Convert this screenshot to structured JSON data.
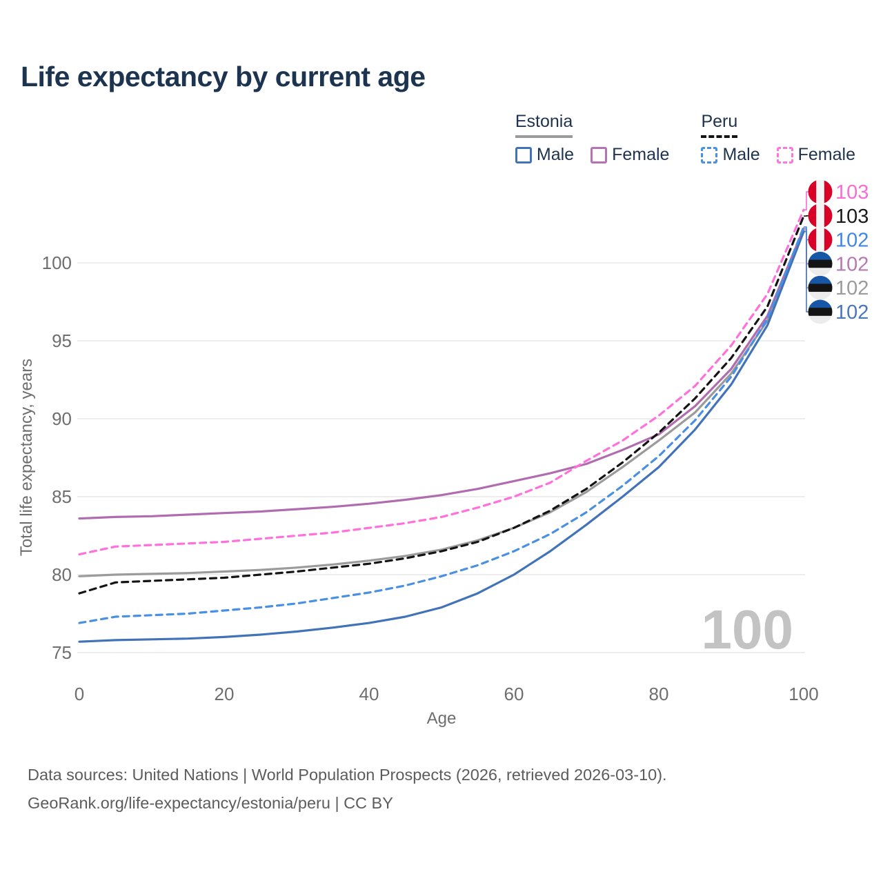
{
  "title": "Life expectancy by current age",
  "legend": {
    "groups": [
      {
        "label": "Estonia",
        "line": {
          "color": "#9b9b9b",
          "style": "solid"
        },
        "items": [
          {
            "label": "Male",
            "color": "#4273b8",
            "style": "solid"
          },
          {
            "label": "Female",
            "color": "#b673b3",
            "style": "solid"
          }
        ]
      },
      {
        "label": "Peru",
        "line": {
          "color": "#141414",
          "style": "dashed"
        },
        "items": [
          {
            "label": "Male",
            "color": "#4a90e2",
            "style": "dashed"
          },
          {
            "label": "Female",
            "color": "#ff77dd",
            "style": "dashed"
          }
        ]
      }
    ]
  },
  "watermark": "100",
  "footer": {
    "line1": "Data sources: United Nations | World Population Prospects (2026, retrieved 2026-03-10).",
    "line2": "GeoRank.org/life-expectancy/estonia/peru | CC BY"
  },
  "chart_data": {
    "type": "line",
    "title": "Life expectancy by current age",
    "xlabel": "Age",
    "ylabel": "Total life expectancy, years",
    "xlim": [
      0,
      100
    ],
    "ylim": [
      74.5,
      103.5
    ],
    "x_ticks": [
      0,
      20,
      40,
      60,
      80,
      100
    ],
    "y_ticks": [
      75,
      80,
      85,
      90,
      95,
      100
    ],
    "grid": "horizontal-only",
    "legend_position": "top-right",
    "x": [
      0,
      5,
      10,
      15,
      20,
      25,
      30,
      35,
      40,
      45,
      50,
      55,
      60,
      65,
      70,
      75,
      80,
      85,
      90,
      95,
      100
    ],
    "series": [
      {
        "name": "Estonia",
        "country": "Estonia",
        "sex": "all",
        "color": "#9b9b9b",
        "dashed": false,
        "values": [
          79.9,
          80.0,
          80.05,
          80.1,
          80.2,
          80.3,
          80.45,
          80.65,
          80.9,
          81.2,
          81.6,
          82.2,
          83.0,
          84.0,
          85.3,
          86.9,
          88.6,
          90.4,
          92.9,
          96.3,
          102.1
        ],
        "end_label": "102",
        "end_label_color": "#9b9b9b",
        "flag": "estonia",
        "end_row": 4
      },
      {
        "name": "Estonia Female",
        "country": "Estonia",
        "sex": "female",
        "color": "#b06cae",
        "dashed": false,
        "values": [
          83.6,
          83.7,
          83.75,
          83.85,
          83.95,
          84.05,
          84.2,
          84.35,
          84.55,
          84.8,
          85.1,
          85.5,
          86.0,
          86.5,
          87.1,
          88.0,
          89.0,
          90.8,
          93.2,
          96.6,
          102.2
        ],
        "end_label": "102",
        "end_label_color": "#b57ab2",
        "flag": "estonia",
        "end_row": 3
      },
      {
        "name": "Estonia Male",
        "country": "Estonia",
        "sex": "male",
        "color": "#4273b8",
        "dashed": false,
        "values": [
          75.7,
          75.8,
          75.85,
          75.9,
          76.0,
          76.15,
          76.35,
          76.6,
          76.9,
          77.3,
          77.9,
          78.8,
          80.0,
          81.5,
          83.2,
          85.0,
          86.9,
          89.3,
          92.2,
          96.0,
          102.0
        ],
        "end_label": "102",
        "end_label_color": "#4a77bb",
        "flag": "estonia",
        "end_row": 5
      },
      {
        "name": "Peru",
        "country": "Peru",
        "sex": "all",
        "color": "#141414",
        "dashed": true,
        "values": [
          78.8,
          79.5,
          79.6,
          79.7,
          79.8,
          80.0,
          80.2,
          80.45,
          80.7,
          81.05,
          81.5,
          82.1,
          83.0,
          84.1,
          85.5,
          87.2,
          89.1,
          91.3,
          93.9,
          97.2,
          103.0
        ],
        "end_label": "103",
        "end_label_color": "#1a1a1a",
        "flag": "peru",
        "end_row": 1
      },
      {
        "name": "Peru Male",
        "country": "Peru",
        "sex": "male",
        "color": "#4a90e2",
        "dashed": true,
        "values": [
          76.9,
          77.3,
          77.4,
          77.5,
          77.7,
          77.9,
          78.15,
          78.5,
          78.85,
          79.3,
          79.9,
          80.6,
          81.5,
          82.6,
          84.0,
          85.7,
          87.6,
          89.9,
          92.7,
          96.4,
          102.3
        ],
        "end_label": "102",
        "end_label_color": "#4187e5",
        "flag": "peru",
        "end_row": 2
      },
      {
        "name": "Peru Female",
        "country": "Peru",
        "sex": "female",
        "color": "#ff70da",
        "dashed": true,
        "values": [
          81.3,
          81.8,
          81.9,
          82.0,
          82.1,
          82.3,
          82.5,
          82.7,
          83.0,
          83.3,
          83.7,
          84.3,
          85.0,
          85.9,
          87.3,
          88.6,
          90.2,
          92.1,
          94.7,
          98.0,
          103.4
        ],
        "end_label": "103",
        "end_label_color": "#f96cd6",
        "flag": "peru",
        "end_row": 0
      }
    ],
    "flag_colors": {
      "peru": {
        "stripes": [
          "#d80027",
          "#f4f4f4",
          "#d80027"
        ],
        "orientation": "vertical"
      },
      "estonia": {
        "stripes": [
          "#1857a6",
          "#141414",
          "#ececec"
        ],
        "orientation": "horizontal"
      }
    },
    "axis_text_color": "#6e6e6e",
    "grid_color": "#e7e7e7",
    "watermark_color": "#c3c3c3"
  }
}
